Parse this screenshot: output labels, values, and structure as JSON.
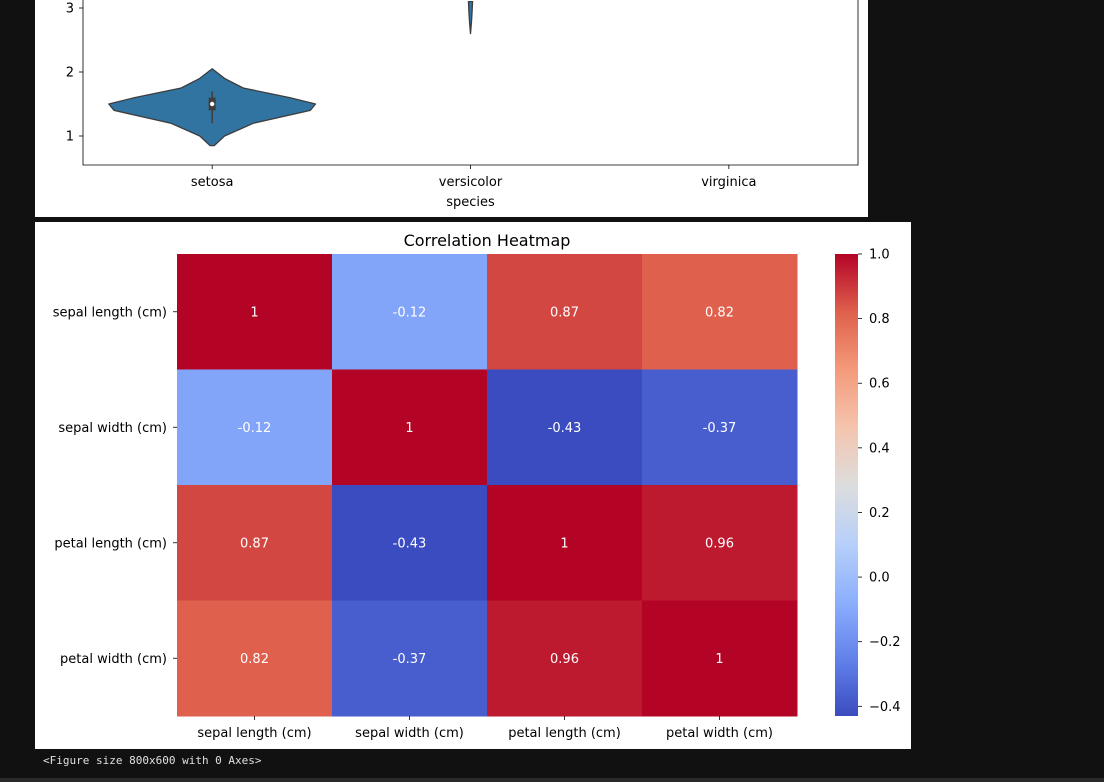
{
  "chart_data": [
    {
      "type": "violin",
      "title": "",
      "xlabel": "species",
      "ylabel": "",
      "categories": [
        "setosa",
        "versicolor",
        "virginica"
      ],
      "y_ticks": [
        1,
        2,
        3
      ],
      "ylim_visible": [
        0.5,
        3.1
      ],
      "violins": [
        {
          "category": "setosa",
          "min": 0.85,
          "max": 2.05,
          "q1": 1.4,
          "median": 1.5,
          "q3": 1.6,
          "whisker_low": 1.2,
          "whisker_high": 1.7,
          "profile": [
            [
              0.85,
              0.02
            ],
            [
              1.0,
              0.12
            ],
            [
              1.2,
              0.4
            ],
            [
              1.4,
              0.95
            ],
            [
              1.5,
              1.0
            ],
            [
              1.6,
              0.75
            ],
            [
              1.75,
              0.3
            ],
            [
              1.9,
              0.12
            ],
            [
              2.05,
              0.0
            ]
          ],
          "color": "#3274a1"
        },
        {
          "category": "versicolor",
          "min": 2.6,
          "max": 3.1,
          "profile": [
            [
              2.6,
              0.0
            ],
            [
              2.75,
              0.008
            ],
            [
              2.9,
              0.014
            ],
            [
              3.1,
              0.02
            ]
          ],
          "color": "#3274a1"
        }
      ]
    },
    {
      "type": "heatmap",
      "title": "Correlation Heatmap",
      "rows": [
        "sepal length (cm)",
        "sepal width (cm)",
        "petal length (cm)",
        "petal width (cm)"
      ],
      "cols": [
        "sepal length (cm)",
        "sepal width (cm)",
        "petal length (cm)",
        "petal width (cm)"
      ],
      "values": [
        [
          1,
          -0.12,
          0.87,
          0.82
        ],
        [
          -0.12,
          1,
          -0.43,
          -0.37
        ],
        [
          0.87,
          -0.43,
          1,
          0.96
        ],
        [
          0.82,
          -0.37,
          0.96,
          1
        ]
      ],
      "annotations": [
        [
          "1",
          "-0.12",
          "0.87",
          "0.82"
        ],
        [
          "-0.12",
          "1",
          "-0.43",
          "-0.37"
        ],
        [
          "0.87",
          "-0.43",
          "1",
          "0.96"
        ],
        [
          "0.82",
          "-0.37",
          "0.96",
          "1"
        ]
      ],
      "colormap": "coolwarm",
      "vmin": -0.43,
      "vmax": 1.0,
      "colorbar_ticks": [
        1.0,
        0.8,
        0.6,
        0.4,
        0.2,
        0.0,
        -0.2,
        -0.4
      ],
      "colorbar_tick_labels": [
        "1.0",
        "0.8",
        "0.6",
        "0.4",
        "0.2",
        "0.0",
        "−0.2",
        "−0.4"
      ]
    }
  ],
  "console_output": "<Figure size 800x600 with 0 Axes>"
}
